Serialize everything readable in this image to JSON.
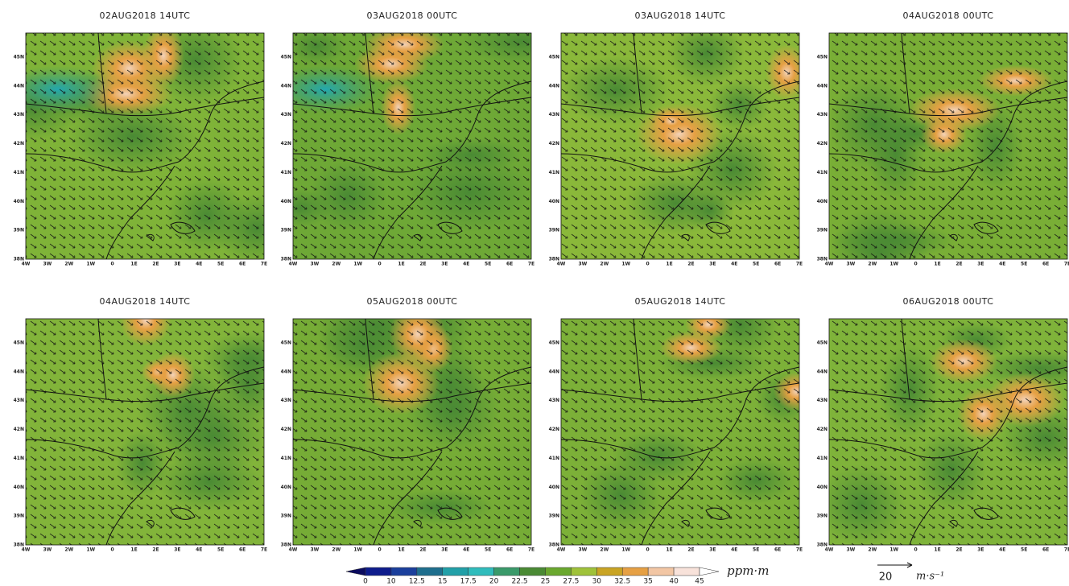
{
  "panels": [
    {
      "title": "02AUG2018  14UTC"
    },
    {
      "title": "03AUG2018  00UTC"
    },
    {
      "title": "03AUG2018  14UTC"
    },
    {
      "title": "04AUG2018  00UTC"
    },
    {
      "title": "04AUG2018  14UTC"
    },
    {
      "title": "05AUG2018  00UTC"
    },
    {
      "title": "05AUG2018  14UTC"
    },
    {
      "title": "06AUG2018  00UTC"
    }
  ],
  "lon_labels": [
    "4W",
    "3W",
    "2W",
    "1W",
    "0",
    "1E",
    "2E",
    "3E",
    "4E",
    "5E",
    "6E",
    "7E"
  ],
  "lat_labels": [
    "38N",
    "39N",
    "40N",
    "41N",
    "42N",
    "43N",
    "44N",
    "45N"
  ],
  "colorbar": {
    "levels": [
      "0",
      "10",
      "12.5",
      "15",
      "17.5",
      "20",
      "22.5",
      "25",
      "27.5",
      "30",
      "32.5",
      "35",
      "40",
      "45"
    ],
    "colors": [
      "#0b0b5e",
      "#0e1c8c",
      "#1b3f9c",
      "#1f6f8e",
      "#22a0a8",
      "#30bcbc",
      "#3a9a6a",
      "#4a8a34",
      "#6aa82e",
      "#9fc23a",
      "#c9a424",
      "#e6a044",
      "#f2c6a4",
      "#f8e2da",
      "#ffffff"
    ],
    "unit": "ppm·m"
  },
  "reference_vector": {
    "value": "20",
    "unit": "m·s⁻¹"
  }
}
